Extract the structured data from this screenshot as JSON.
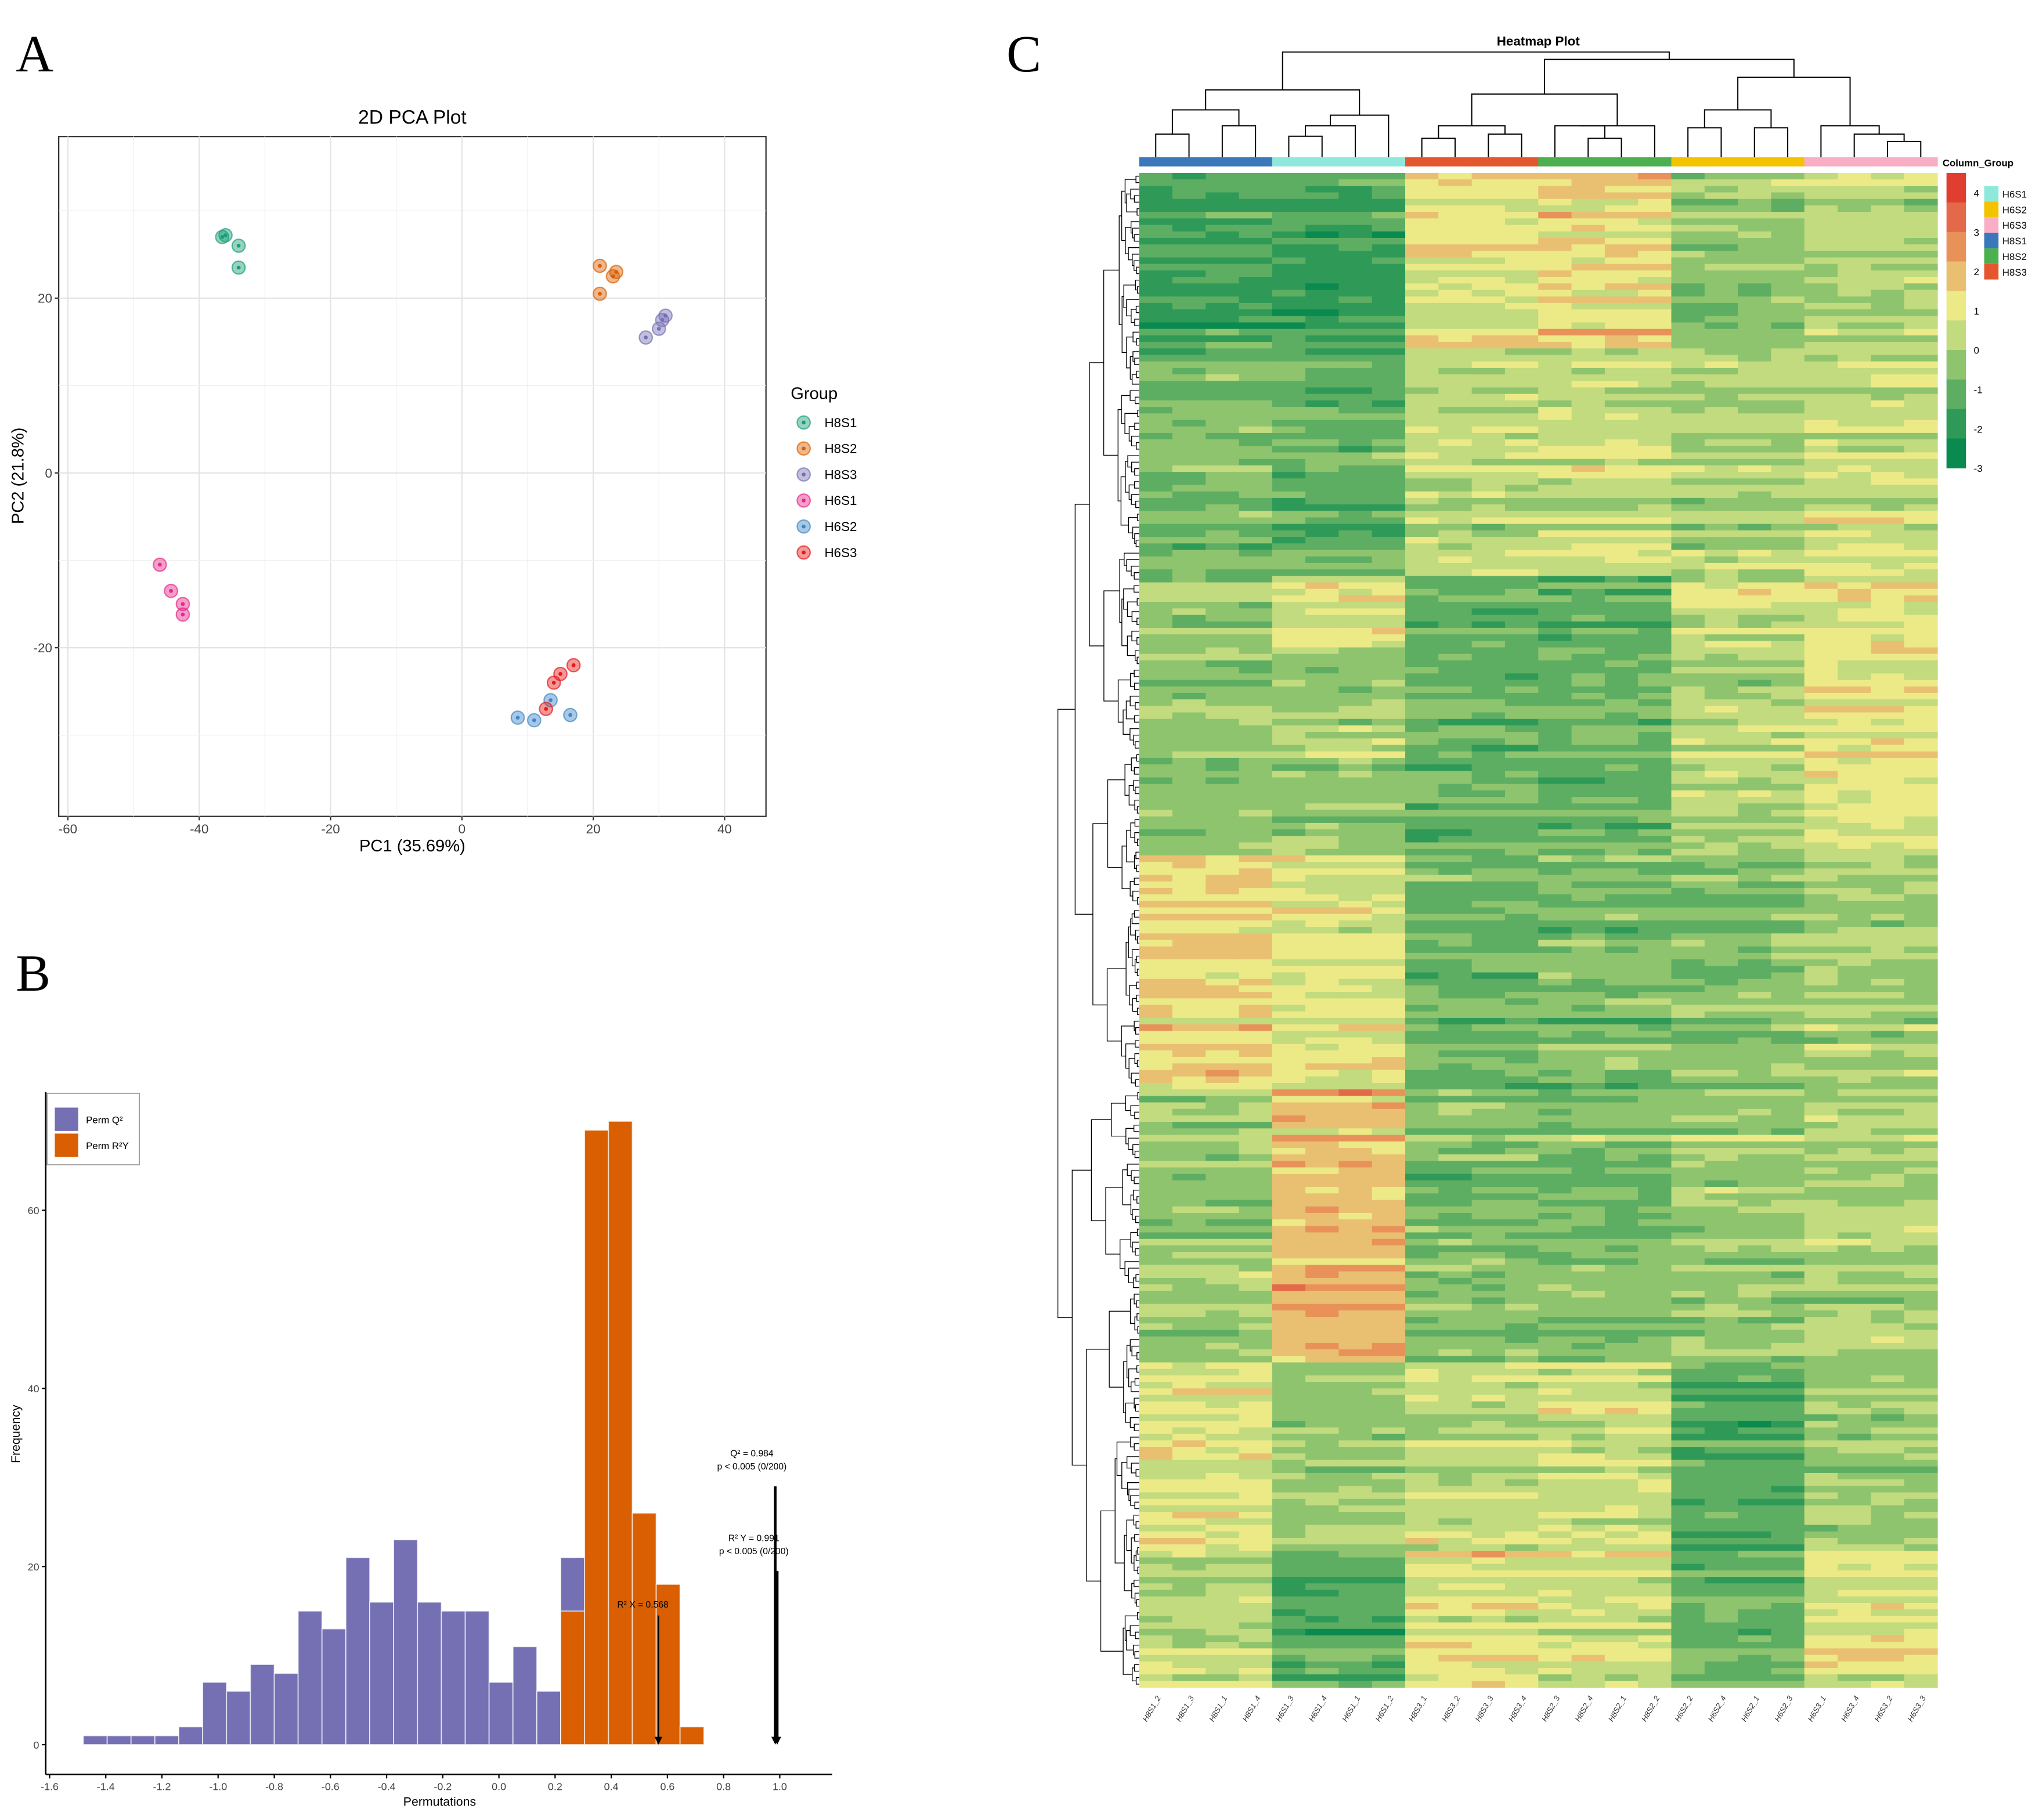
{
  "panels": {
    "a": "A",
    "b": "B",
    "c": "C"
  },
  "chart_data": [
    {
      "type": "scatter",
      "title": "2D PCA Plot",
      "xlabel": "PC1 (35.69%)",
      "ylabel": "PC2 (21.8%)",
      "xlim": [
        -61.4,
        46.3
      ],
      "ylim": [
        -39.3,
        38.5
      ],
      "xticks": [
        -60,
        -40,
        -20,
        0,
        20,
        40
      ],
      "yticks": [
        -20,
        0,
        20
      ],
      "grid": true,
      "legend_title": "Group",
      "legend_position": "right",
      "series": [
        {
          "name": "H8S1",
          "color": "#1b9e77",
          "points": [
            [
              -36.5,
              27.0
            ],
            [
              -36.0,
              27.2
            ],
            [
              -34.0,
              26.0
            ],
            [
              -34.0,
              23.5
            ]
          ]
        },
        {
          "name": "H8S2",
          "color": "#d95f02",
          "points": [
            [
              21.0,
              23.7
            ],
            [
              23.0,
              22.5
            ],
            [
              23.5,
              23.0
            ],
            [
              21.0,
              20.5
            ]
          ]
        },
        {
          "name": "H8S3",
          "color": "#7570b3",
          "points": [
            [
              31.0,
              18.0
            ],
            [
              30.5,
              17.5
            ],
            [
              30.0,
              16.5
            ],
            [
              28.0,
              15.5
            ]
          ]
        },
        {
          "name": "H6S1",
          "color": "#e7298a",
          "points": [
            [
              -46.0,
              -10.5
            ],
            [
              -44.3,
              -13.5
            ],
            [
              -42.5,
              -15.0
            ],
            [
              -42.5,
              -16.2
            ]
          ]
        },
        {
          "name": "H6S2",
          "color": "#3f88c5",
          "points": [
            [
              8.5,
              -28.0
            ],
            [
              11.0,
              -28.3
            ],
            [
              13.5,
              -26.0
            ],
            [
              16.5,
              -27.7
            ]
          ]
        },
        {
          "name": "H6S3",
          "color": "#e41a1c",
          "points": [
            [
              17.0,
              -22.0
            ],
            [
              15.0,
              -23.0
            ],
            [
              14.0,
              -24.0
            ],
            [
              12.8,
              -27.0
            ]
          ]
        }
      ]
    },
    {
      "type": "bar",
      "title": "",
      "xlabel": "Permutations",
      "ylabel": "Frequency",
      "xlim": [
        -1.615,
        1.187
      ],
      "ylim": [
        -3.4,
        73.3
      ],
      "xticks": [
        -1.6,
        -1.4,
        -1.2,
        -1.0,
        -0.8,
        -0.6,
        -0.4,
        -0.2,
        0.0,
        0.2,
        0.4,
        0.6,
        0.8,
        1.0
      ],
      "yticks": [
        0,
        20,
        40,
        60
      ],
      "grid": false,
      "legend_position": "top-left",
      "bin_width": 0.085,
      "series": [
        {
          "name": "Perm Q²",
          "color": "#7570b3",
          "bin_start": -1.48,
          "values": [
            1,
            1,
            1,
            1,
            2,
            7,
            6,
            9,
            8,
            15,
            13,
            21,
            16,
            23,
            16,
            15,
            15,
            7,
            11,
            6,
            21
          ]
        },
        {
          "name": "Perm R²Y",
          "color": "#d95f02",
          "bin_start": 0.22,
          "values": [
            15,
            69,
            70,
            26,
            18,
            2
          ]
        }
      ],
      "annotations": [
        {
          "lines": [
            "R² X = 0.568"
          ],
          "x": 0.568,
          "arrow_from": 14.5,
          "arrow_weight": 1.2
        },
        {
          "lines": [
            "Q² = 0.984",
            "p < 0.005 (0/200)"
          ],
          "x": 0.984,
          "arrow_from": 29,
          "arrow_weight": 2
        },
        {
          "lines": [
            "R² Y = 0.991",
            "p < 0.005 (0/200)"
          ],
          "x": 0.991,
          "arrow_from": 19.5,
          "arrow_weight": 2
        }
      ]
    },
    {
      "type": "heatmap",
      "title": "Heatmap Plot",
      "column_legend_title": "Column_Group",
      "columns": [
        "H8S1_2",
        "H8S1_3",
        "H8S1_1",
        "H8S1_4",
        "H6S1_3",
        "H6S1_4",
        "H6S1_1",
        "H6S1_2",
        "H8S3_1",
        "H8S3_2",
        "H8S3_3",
        "H8S3_4",
        "H8S2_3",
        "H8S2_4",
        "H8S2_1",
        "H8S2_2",
        "H6S2_2",
        "H6S2_4",
        "H6S2_1",
        "H6S2_3",
        "H6S3_1",
        "H6S3_4",
        "H6S3_2",
        "H6S3_3"
      ],
      "column_groups": [
        "H8S1",
        "H8S1",
        "H8S1",
        "H8S1",
        "H6S1",
        "H6S1",
        "H6S1",
        "H6S1",
        "H8S3",
        "H8S3",
        "H8S3",
        "H8S3",
        "H8S2",
        "H8S2",
        "H8S2",
        "H8S2",
        "H6S2",
        "H6S2",
        "H6S2",
        "H6S2",
        "H6S3",
        "H6S3",
        "H6S3",
        "H6S3"
      ],
      "group_colors": {
        "H6S1": "#8ee9dc",
        "H6S2": "#f3c300",
        "H6S3": "#f8aec4",
        "H8S1": "#3a78b9",
        "H8S2": "#4caf50",
        "H8S3": "#e4572e"
      },
      "group_legend_order": [
        "H6S1",
        "H6S2",
        "H6S3",
        "H8S1",
        "H8S2",
        "H8S3"
      ],
      "color_scale": {
        "min": -3,
        "max": 4.5,
        "ticks": [
          4,
          3,
          2,
          1,
          0,
          -1,
          -2,
          -3
        ],
        "colors": [
          "#0a8a4f",
          "#2f9a58",
          "#5dae62",
          "#8fc46e",
          "#c1db7e",
          "#ecea87",
          "#e9c072",
          "#e8925a",
          "#e4694a",
          "#e03e30"
        ]
      },
      "row_clusters": [
        {
          "rows": 27,
          "group_means": [
            -1.5,
            -1.5,
            1.0,
            1.3,
            -0.5,
            0.0
          ]
        },
        {
          "rows": 35,
          "group_means": [
            -0.7,
            -1.0,
            0.3,
            0.5,
            0.0,
            0.5
          ]
        },
        {
          "rows": 11,
          "group_means": [
            -0.5,
            0.8,
            -1.2,
            -1.3,
            0.5,
            0.8
          ]
        },
        {
          "rows": 32,
          "group_means": [
            -0.3,
            0.0,
            -0.8,
            -0.8,
            0.3,
            1.0
          ]
        },
        {
          "rows": 36,
          "group_means": [
            1.5,
            0.8,
            -0.8,
            -0.6,
            -0.5,
            0.0
          ]
        },
        {
          "rows": 42,
          "group_means": [
            -0.2,
            1.8,
            -0.7,
            -0.7,
            -0.3,
            0.0
          ]
        },
        {
          "rows": 29,
          "group_means": [
            0.8,
            -0.3,
            0.3,
            0.4,
            -1.3,
            -0.2
          ]
        },
        {
          "rows": 21,
          "group_means": [
            0.3,
            -1.3,
            1.0,
            0.8,
            -1.0,
            0.8
          ]
        }
      ],
      "column_dendrogram": [
        [
          [
            [
              [
                0,
                1,
                2.2
              ],
              [
                2,
                3,
                3.0
              ],
              4.5
            ],
            [
              [
                [
                  4,
                  5,
                  2.0
                ],
                6,
                3.0
              ],
              7,
              4.0
            ],
            6.4
          ],
          8.0
        ],
        [
          [
            [
              [
                [
                  8,
                  9,
                  1.8
                ],
                [
                  10,
                  11,
                  2.2
                ],
                3.0
              ],
              [
                [
                  12,
                  [
                    13,
                    14,
                    1.8
                  ],
                  3.0
                ],
                15,
                3.0
              ],
              6.0
            ],
            [
              [
                [
                  16,
                  17,
                  2.8
                ],
                [
                  18,
                  19,
                  2.8
                ],
                4.5
              ],
              [
                [
                  20,
                  [
                    21,
                    [
                      22,
                      23,
                      1.5
                    ],
                    2.2
                  ],
                  3.0
                ],
                4.8
              ],
              7.6
            ],
            9.3
          ]
        ],
        10.0
      ]
    }
  ]
}
